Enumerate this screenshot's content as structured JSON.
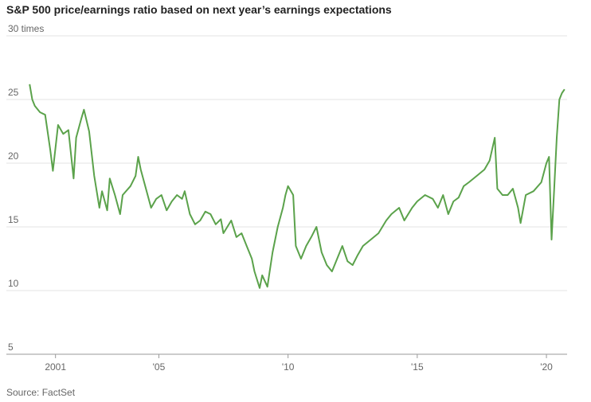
{
  "chart_data": {
    "type": "line",
    "title": "S&P 500 price/earnings ratio based on next year’s earnings expectations",
    "source": "Source: FactSet",
    "color": "#5ba24b",
    "x": [
      2000.0,
      2000.1,
      2000.2,
      2000.4,
      2000.6,
      2000.8,
      2000.9,
      2001.1,
      2001.3,
      2001.5,
      2001.7,
      2001.8,
      2002.0,
      2002.1,
      2002.3,
      2002.5,
      2002.7,
      2002.8,
      2003.0,
      2003.1,
      2003.3,
      2003.5,
      2003.6,
      2003.9,
      2004.1,
      2004.2,
      2004.3,
      2004.5,
      2004.7,
      2004.9,
      2005.1,
      2005.3,
      2005.5,
      2005.7,
      2005.9,
      2006.0,
      2006.2,
      2006.4,
      2006.6,
      2006.8,
      2007.0,
      2007.2,
      2007.4,
      2007.5,
      2007.8,
      2008.0,
      2008.2,
      2008.4,
      2008.6,
      2008.7,
      2008.9,
      2009.0,
      2009.2,
      2009.4,
      2009.6,
      2009.8,
      2009.9,
      2010.0,
      2010.2,
      2010.3,
      2010.5,
      2010.7,
      2010.9,
      2011.1,
      2011.3,
      2011.5,
      2011.7,
      2011.9,
      2012.1,
      2012.3,
      2012.5,
      2012.7,
      2012.9,
      2013.2,
      2013.5,
      2013.8,
      2014.0,
      2014.3,
      2014.5,
      2014.8,
      2015.0,
      2015.3,
      2015.6,
      2015.8,
      2016.0,
      2016.2,
      2016.4,
      2016.6,
      2016.8,
      2017.0,
      2017.3,
      2017.6,
      2017.8,
      2018.0,
      2018.1,
      2018.3,
      2018.5,
      2018.7,
      2018.9,
      2019.0,
      2019.2,
      2019.5,
      2019.8,
      2020.0,
      2020.1,
      2020.2,
      2020.3,
      2020.4,
      2020.5,
      2020.6,
      2020.7
    ],
    "values": [
      26.2,
      25.0,
      24.5,
      24.0,
      23.8,
      21.0,
      19.4,
      23.0,
      22.3,
      22.6,
      18.8,
      22.0,
      23.5,
      24.2,
      22.5,
      19.0,
      16.5,
      17.8,
      16.3,
      18.8,
      17.5,
      16.0,
      17.5,
      18.2,
      19.0,
      20.5,
      19.5,
      18.0,
      16.5,
      17.2,
      17.5,
      16.3,
      17.0,
      17.5,
      17.2,
      17.8,
      16.0,
      15.2,
      15.5,
      16.2,
      16.0,
      15.2,
      15.6,
      14.5,
      15.5,
      14.2,
      14.5,
      13.5,
      12.5,
      11.5,
      10.2,
      11.2,
      10.3,
      13.0,
      15.0,
      16.5,
      17.5,
      18.2,
      17.5,
      13.5,
      12.5,
      13.5,
      14.2,
      15.0,
      13.0,
      12.0,
      11.5,
      12.5,
      13.5,
      12.3,
      12.0,
      12.8,
      13.5,
      14.0,
      14.5,
      15.5,
      16.0,
      16.5,
      15.5,
      16.5,
      17.0,
      17.5,
      17.2,
      16.5,
      17.5,
      16.0,
      17.0,
      17.3,
      18.2,
      18.5,
      19.0,
      19.5,
      20.2,
      22.0,
      18.0,
      17.5,
      17.5,
      18.0,
      16.5,
      15.3,
      17.5,
      17.8,
      18.5,
      20.0,
      20.5,
      14.0,
      18.0,
      22.0,
      25.0,
      25.5,
      25.8
    ],
    "xlim": [
      1999.9,
      2020.8
    ],
    "xticks": [
      {
        "value": 2001,
        "label": "2001"
      },
      {
        "value": 2005,
        "label": "'05"
      },
      {
        "value": 2010,
        "label": "'10"
      },
      {
        "value": 2015,
        "label": "'15"
      },
      {
        "value": 2020,
        "label": "'20"
      }
    ],
    "ylim": [
      5,
      30
    ],
    "yticks": [
      5,
      10,
      15,
      20,
      25,
      {
        "value": 30,
        "label": "30 times"
      }
    ],
    "grid": true
  }
}
